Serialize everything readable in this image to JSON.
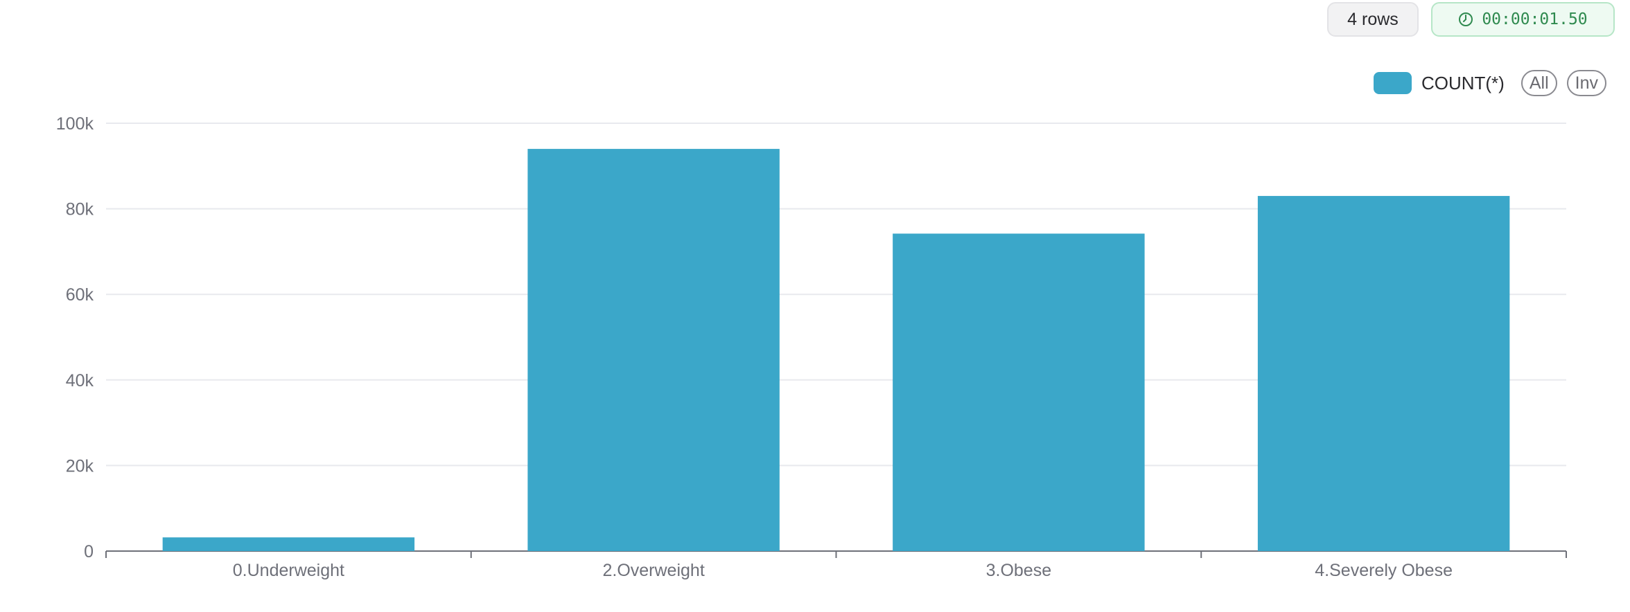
{
  "badges": {
    "rows": "4 rows",
    "time": "00:00:01.50"
  },
  "legend": {
    "series_label": "COUNT(*)",
    "all_label": "All",
    "inv_label": "Inv"
  },
  "colors": {
    "bar": "#3ba7c9",
    "grid": "#e8e9ee",
    "axis": "#6e7079"
  },
  "chart_data": {
    "type": "bar",
    "categories": [
      "0.Underweight",
      "2.Overweight",
      "3.Obese",
      "4.Severely Obese"
    ],
    "series": [
      {
        "name": "COUNT(*)",
        "values": [
          3200,
          94000,
          74200,
          83000
        ]
      }
    ],
    "yticks": [
      0,
      20000,
      40000,
      60000,
      80000,
      100000
    ],
    "ytick_labels": [
      "0",
      "20k",
      "40k",
      "60k",
      "80k",
      "100k"
    ],
    "ylim": [
      0,
      100000
    ],
    "grid": true,
    "legend_position": "top-right"
  }
}
